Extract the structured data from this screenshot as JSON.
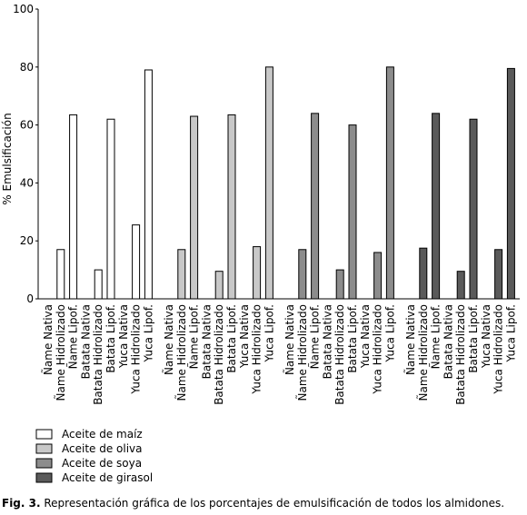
{
  "chart_data": {
    "type": "bar",
    "ylabel": "% Emulsificación",
    "categories": [
      "Ñame Nativa",
      "Ñame Hidrolizado",
      "Ñame Lipof.",
      "Batata Nativa",
      "Batata Hidrolizado",
      "Batata Lipof.",
      "Yuca Nativa",
      "Yuca Hidrolizado",
      "Yuca Lipof."
    ],
    "series": [
      {
        "name": "Aceite de maíz",
        "color": "#ffffff",
        "values": [
          0,
          17,
          63.5,
          0,
          10,
          62,
          0,
          25.5,
          79
        ]
      },
      {
        "name": "Aceite de oliva",
        "color": "#c8c8c8",
        "values": [
          0,
          17,
          63,
          0,
          9.5,
          63.5,
          0,
          18,
          80
        ]
      },
      {
        "name": "Aceite de soya",
        "color": "#8c8c8c",
        "values": [
          0,
          17,
          64,
          0,
          10,
          60,
          0,
          16,
          80
        ]
      },
      {
        "name": "Aceite de girasol",
        "color": "#5a5a5a",
        "values": [
          0,
          17.5,
          64,
          0,
          9.5,
          62,
          0,
          17,
          79.5
        ]
      }
    ],
    "ylim": [
      0,
      100
    ],
    "yticks": [
      0,
      20,
      40,
      60,
      80,
      100
    ],
    "grid": false,
    "caption_label": "Fig. 3.",
    "caption": "Representación gráfica de los porcentajes de emulsificación de todos los almidones."
  }
}
